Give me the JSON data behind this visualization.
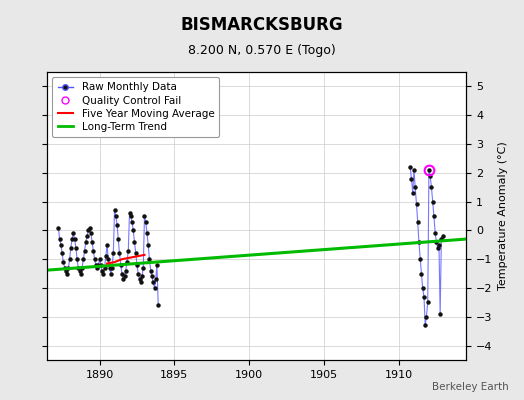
{
  "title": "BISMARCKSBURG",
  "subtitle": "8.200 N, 0.570 E (Togo)",
  "ylabel": "Temperature Anomaly (°C)",
  "watermark": "Berkeley Earth",
  "xlim": [
    1886.5,
    1914.5
  ],
  "ylim": [
    -4.5,
    5.5
  ],
  "yticks": [
    -4,
    -3,
    -2,
    -1,
    0,
    1,
    2,
    3,
    4,
    5
  ],
  "xticks": [
    1890,
    1895,
    1900,
    1905,
    1910
  ],
  "background_color": "#e8e8e8",
  "plot_bg_color": "#ffffff",
  "early_line": [
    [
      1887.25,
      0.1
    ],
    [
      1887.33,
      -0.3
    ],
    [
      1887.42,
      -0.5
    ],
    [
      1887.5,
      -0.8
    ],
    [
      1887.58,
      -1.1
    ],
    [
      1887.67,
      -1.3
    ],
    [
      1887.75,
      -1.4
    ],
    [
      1887.83,
      -1.5
    ],
    [
      1887.92,
      -1.3
    ],
    [
      1888.0,
      -1.0
    ],
    [
      1888.08,
      -0.6
    ],
    [
      1888.17,
      -0.3
    ],
    [
      1888.25,
      -0.1
    ],
    [
      1888.33,
      -0.3
    ],
    [
      1888.42,
      -0.6
    ],
    [
      1888.5,
      -1.0
    ],
    [
      1888.58,
      -1.3
    ],
    [
      1888.67,
      -1.4
    ],
    [
      1888.75,
      -1.5
    ],
    [
      1888.83,
      -1.3
    ],
    [
      1888.92,
      -1.0
    ],
    [
      1889.0,
      -0.7
    ],
    [
      1889.08,
      -0.4
    ],
    [
      1889.17,
      -0.2
    ],
    [
      1889.25,
      0.0
    ],
    [
      1889.33,
      0.1
    ],
    [
      1889.42,
      -0.1
    ],
    [
      1889.5,
      -0.4
    ],
    [
      1889.58,
      -0.7
    ],
    [
      1889.67,
      -1.0
    ],
    [
      1889.75,
      -1.2
    ],
    [
      1889.83,
      -1.3
    ],
    [
      1889.92,
      -1.2
    ],
    [
      1890.0,
      -1.0
    ],
    [
      1890.08,
      -1.2
    ],
    [
      1890.17,
      -1.4
    ],
    [
      1890.25,
      -1.5
    ],
    [
      1890.33,
      -1.3
    ],
    [
      1890.42,
      -0.9
    ],
    [
      1890.5,
      -0.5
    ],
    [
      1890.58,
      -1.0
    ],
    [
      1890.67,
      -1.3
    ],
    [
      1890.75,
      -1.5
    ],
    [
      1890.83,
      -1.3
    ],
    [
      1890.92,
      -0.8
    ],
    [
      1891.0,
      0.7
    ],
    [
      1891.08,
      0.5
    ],
    [
      1891.17,
      0.2
    ],
    [
      1891.25,
      -0.3
    ],
    [
      1891.33,
      -0.8
    ],
    [
      1891.42,
      -1.2
    ],
    [
      1891.5,
      -1.5
    ],
    [
      1891.58,
      -1.7
    ],
    [
      1891.67,
      -1.6
    ],
    [
      1891.75,
      -1.4
    ],
    [
      1891.83,
      -1.1
    ],
    [
      1891.92,
      -0.7
    ],
    [
      1892.0,
      0.6
    ],
    [
      1892.08,
      0.5
    ],
    [
      1892.17,
      0.3
    ],
    [
      1892.25,
      0.0
    ],
    [
      1892.33,
      -0.4
    ],
    [
      1892.42,
      -0.8
    ],
    [
      1892.5,
      -1.2
    ],
    [
      1892.58,
      -1.5
    ],
    [
      1892.67,
      -1.7
    ],
    [
      1892.75,
      -1.8
    ],
    [
      1892.83,
      -1.6
    ],
    [
      1892.92,
      -1.3
    ],
    [
      1893.0,
      0.5
    ],
    [
      1893.08,
      0.3
    ],
    [
      1893.17,
      -0.1
    ],
    [
      1893.25,
      -0.5
    ],
    [
      1893.33,
      -1.0
    ],
    [
      1893.42,
      -1.4
    ],
    [
      1893.5,
      -1.6
    ],
    [
      1893.58,
      -1.8
    ],
    [
      1893.67,
      -2.0
    ],
    [
      1893.75,
      -1.7
    ],
    [
      1893.83,
      -1.2
    ],
    [
      1893.92,
      -2.6
    ]
  ],
  "late_line": [
    [
      1910.75,
      2.2
    ],
    [
      1910.83,
      1.8
    ],
    [
      1910.92,
      1.3
    ],
    [
      1911.0,
      2.1
    ],
    [
      1911.08,
      1.5
    ],
    [
      1911.17,
      0.9
    ],
    [
      1911.25,
      0.3
    ],
    [
      1911.33,
      -0.4
    ],
    [
      1911.42,
      -1.0
    ],
    [
      1911.5,
      -1.5
    ],
    [
      1911.58,
      -2.0
    ],
    [
      1911.67,
      -2.3
    ],
    [
      1911.75,
      -3.3
    ],
    [
      1911.83,
      -3.0
    ],
    [
      1911.92,
      -2.5
    ],
    [
      1912.0,
      2.1
    ],
    [
      1912.08,
      1.9
    ],
    [
      1912.17,
      1.5
    ],
    [
      1912.25,
      1.0
    ],
    [
      1912.33,
      0.5
    ],
    [
      1912.42,
      -0.1
    ],
    [
      1912.5,
      -0.4
    ],
    [
      1912.58,
      -0.6
    ],
    [
      1912.67,
      -0.5
    ],
    [
      1912.75,
      -2.9
    ],
    [
      1912.83,
      -0.3
    ],
    [
      1912.92,
      -0.2
    ]
  ],
  "five_year_ma_x": [
    1890.5,
    1891.0,
    1891.5,
    1892.0,
    1892.5,
    1893.0
  ],
  "five_year_ma_y": [
    -1.15,
    -1.1,
    -1.0,
    -0.95,
    -0.9,
    -0.85
  ],
  "trend_x": [
    1886.5,
    1914.5
  ],
  "trend_y": [
    -1.38,
    -0.3
  ],
  "qc_x": 1912.0,
  "qc_y": 2.1,
  "raw_color": "#5555ff",
  "ma_color": "#ff0000",
  "trend_color": "#00bb00",
  "qc_color": "#ff00ff",
  "marker_color": "#111111",
  "grid_color": "#cccccc",
  "title_fontsize": 12,
  "subtitle_fontsize": 9,
  "ylabel_fontsize": 8,
  "tick_fontsize": 8,
  "legend_fontsize": 7.5
}
